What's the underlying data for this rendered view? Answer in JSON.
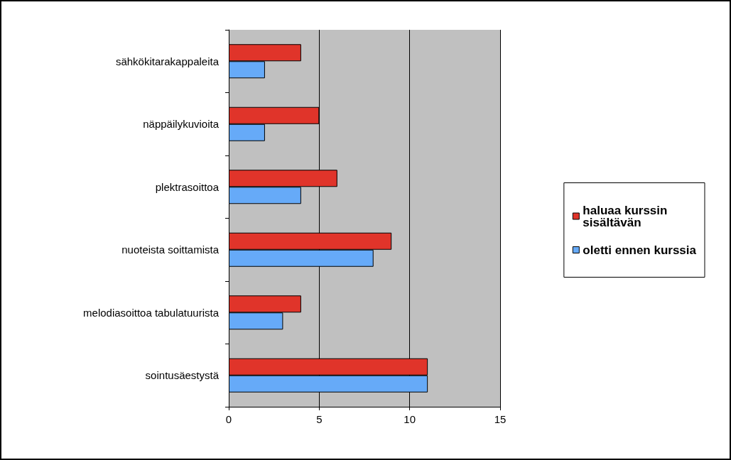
{
  "chart_data": {
    "type": "bar",
    "orientation": "horizontal",
    "categories": [
      "sähkökitarakappaleita",
      "näppäilykuvioita",
      "plektrasoittoa",
      "nuoteista soittamista",
      "melodiasoittoa tabulatuurista",
      "sointusäestystä"
    ],
    "series": [
      {
        "name": "haluaa kurssin sisältävän",
        "color": "#e0342a",
        "values": [
          4,
          5,
          6,
          9,
          4,
          11
        ]
      },
      {
        "name": "oletti ennen kurssia",
        "color": "#66aaf8",
        "values": [
          2,
          2,
          4,
          8,
          3,
          11
        ]
      }
    ],
    "xlim": [
      0,
      15
    ],
    "xticks": [
      0,
      5,
      10,
      15
    ],
    "grid": "x",
    "legend": "right"
  }
}
